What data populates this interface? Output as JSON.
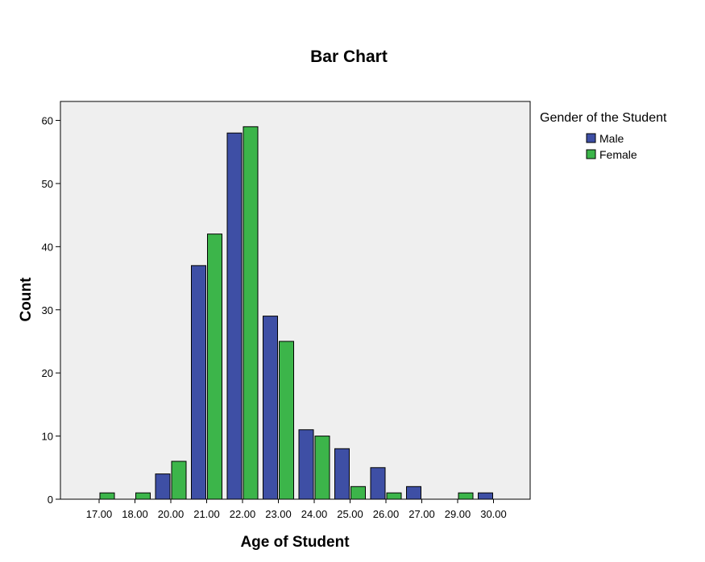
{
  "chart_data": {
    "type": "bar",
    "title": "Bar Chart",
    "xlabel": "Age of Student",
    "ylabel": "Count",
    "categories": [
      "17.00",
      "18.00",
      "20.00",
      "21.00",
      "22.00",
      "23.00",
      "24.00",
      "25.00",
      "26.00",
      "27.00",
      "29.00",
      "30.00"
    ],
    "series": [
      {
        "name": "Male",
        "color": "#3e4fa5",
        "values": [
          0,
          0,
          4,
          37,
          58,
          29,
          11,
          8,
          5,
          2,
          0,
          1
        ]
      },
      {
        "name": "Female",
        "color": "#3cb54a",
        "values": [
          1,
          1,
          6,
          42,
          59,
          25,
          10,
          2,
          1,
          0,
          1,
          0
        ]
      }
    ],
    "ylim": [
      0,
      63
    ],
    "yticks": [
      0,
      10,
      20,
      30,
      40,
      50,
      60
    ],
    "legend": {
      "title": "Gender of the Student",
      "position": "right"
    },
    "plot_background": "#efefef",
    "grid": false
  }
}
